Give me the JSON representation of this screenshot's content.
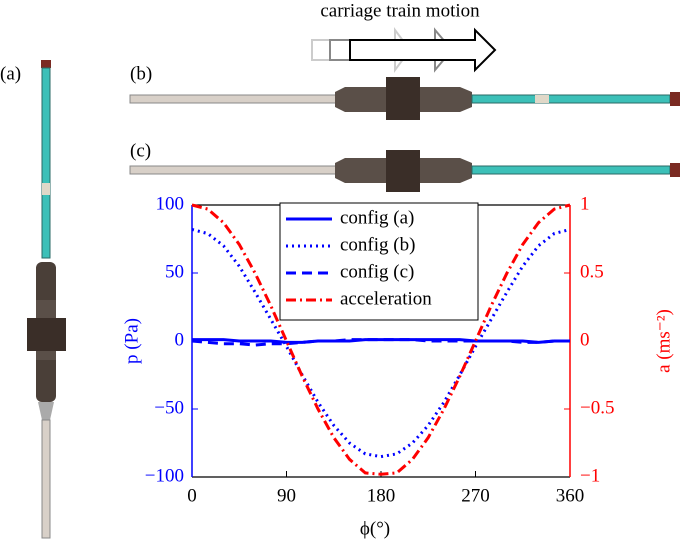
{
  "chart_data": {
    "type": "line",
    "annotations": [
      "carriage train motion",
      "(a)",
      "(b)",
      "(c)"
    ],
    "xlabel": "ϕ(°)",
    "ylabel": "p (Pa)",
    "y2label": "a (ms⁻²)",
    "x": [
      0,
      15,
      30,
      45,
      60,
      75,
      90,
      105,
      120,
      135,
      150,
      165,
      180,
      195,
      210,
      225,
      240,
      255,
      270,
      285,
      300,
      315,
      330,
      345,
      360
    ],
    "series": [
      {
        "name": "config (a)",
        "color": "#0000ff",
        "linestyle": "solid",
        "values": [
          1,
          1,
          1,
          0,
          0,
          0,
          -1,
          -1,
          0,
          0,
          0,
          1,
          1,
          1,
          1,
          1,
          1,
          1,
          0,
          0,
          0,
          0,
          -1,
          0,
          0
        ]
      },
      {
        "name": "config (b)",
        "color": "#0000ff",
        "linestyle": "dotted",
        "values": [
          82,
          79,
          70,
          55,
          36,
          16,
          -4,
          -25,
          -45,
          -62,
          -75,
          -83,
          -85,
          -83,
          -75,
          -62,
          -45,
          -25,
          -4,
          16,
          36,
          55,
          70,
          79,
          82
        ]
      },
      {
        "name": "config (c)",
        "color": "#0000ff",
        "linestyle": "dashed",
        "values": [
          0,
          -1,
          -2,
          -2,
          -3,
          -2,
          -2,
          -1,
          0,
          0,
          1,
          1,
          1,
          1,
          1,
          0,
          0,
          0,
          0,
          0,
          0,
          -1,
          -1,
          0,
          0
        ]
      },
      {
        "name": "acceleration",
        "color": "#ff0000",
        "linestyle": "dashdot",
        "axis": "y2",
        "values": [
          1,
          0.97,
          0.87,
          0.71,
          0.5,
          0.26,
          0,
          -0.26,
          -0.5,
          -0.71,
          -0.87,
          -0.97,
          -0.98,
          -0.97,
          -0.87,
          -0.71,
          -0.5,
          -0.26,
          0,
          0.26,
          0.5,
          0.71,
          0.87,
          0.97,
          1
        ]
      }
    ],
    "xlim": [
      0,
      360
    ],
    "xticks": [
      0,
      90,
      180,
      270,
      360
    ],
    "ylim": [
      -100,
      100
    ],
    "yticks": [
      {
        "value": -100,
        "label": "−100"
      },
      {
        "value": -50,
        "label": "−50"
      },
      0,
      50,
      100
    ],
    "y2lim": [
      -1,
      1
    ],
    "y2ticks": [
      {
        "value": -1,
        "label": "−1"
      },
      {
        "value": -0.5,
        "label": "−0.5"
      },
      0,
      0.5,
      1
    ],
    "ycolor": "#0000ff",
    "y2color": "#ff0000",
    "legend": "top"
  }
}
